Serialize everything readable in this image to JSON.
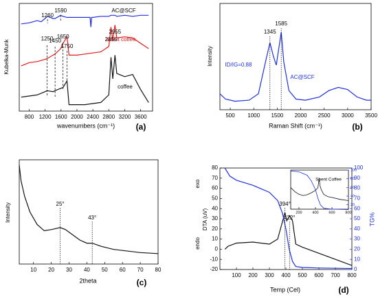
{
  "chart_data": [
    {
      "type": "line",
      "panel_label": "(a)",
      "xlabel": "wavenumbers (cm⁻¹)",
      "ylabel": "Kubelka-Munk",
      "xlim": [
        550,
        3900
      ],
      "xticks": [
        800,
        1200,
        1600,
        2000,
        2400,
        2800,
        3200,
        3600
      ],
      "ylim": [
        0,
        10
      ],
      "series": [
        {
          "name": "AC@SCF",
          "color": "#1f2fe0",
          "x": [
            600,
            800,
            1000,
            1100,
            1200,
            1260,
            1400,
            1450,
            1590,
            1650,
            1750,
            1800,
            2000,
            2200,
            2330,
            2350,
            2370,
            2400,
            2600,
            2800,
            2855,
            2955,
            3000,
            3200,
            3400,
            3600,
            3800
          ],
          "values": [
            8.1,
            8.2,
            8.4,
            8.3,
            8.6,
            8.8,
            8.6,
            8.6,
            8.9,
            8.8,
            8.7,
            8.7,
            8.7,
            8.7,
            8.7,
            7.8,
            8.7,
            8.7,
            8.8,
            8.8,
            8.9,
            8.9,
            8.8,
            8.9,
            8.8,
            8.9,
            8.9
          ]
        },
        {
          "name": "spent coffee",
          "color": "#e01818",
          "x": [
            600,
            800,
            1000,
            1200,
            1260,
            1400,
            1450,
            1590,
            1650,
            1750,
            1800,
            2000,
            2200,
            2400,
            2600,
            2800,
            2855,
            2900,
            2955,
            3000,
            3200,
            3400,
            3600,
            3800
          ],
          "values": [
            4.2,
            4.5,
            4.6,
            4.8,
            4.9,
            5.2,
            5.3,
            5.8,
            6.3,
            6.9,
            5.2,
            5.2,
            5.3,
            5.4,
            5.5,
            6.0,
            7.8,
            6.6,
            8.0,
            6.8,
            6.9,
            6.8,
            6.3,
            5.8
          ]
        },
        {
          "name": "coffee",
          "color": "#111111",
          "x": [
            600,
            800,
            1000,
            1200,
            1250,
            1400,
            1450,
            1650,
            1750,
            1800,
            2000,
            2200,
            2400,
            2600,
            2800,
            2855,
            2900,
            2955,
            3000,
            3200,
            3400,
            3600,
            3800
          ],
          "values": [
            1.3,
            1.4,
            1.5,
            1.8,
            1.9,
            1.8,
            1.9,
            2.2,
            2.8,
            0.6,
            0.6,
            0.6,
            0.7,
            0.8,
            1.5,
            5.0,
            3.0,
            5.2,
            3.5,
            3.2,
            3.4,
            2.0,
            0.8
          ]
        }
      ],
      "annotations": [
        {
          "label": "1260",
          "x": 1260
        },
        {
          "label": "1590",
          "x": 1590
        },
        {
          "label": "1250",
          "x": 1250
        },
        {
          "label": "1450",
          "x": 1450
        },
        {
          "label": "1650",
          "x": 1650
        },
        {
          "label": "1750",
          "x": 1750
        },
        {
          "label": "2855",
          "x": 2855
        },
        {
          "label": "2955",
          "x": 2955
        }
      ]
    },
    {
      "type": "line",
      "panel_label": "(b)",
      "xlabel": "Raman   Shift (cm⁻¹)",
      "ylabel": "Intensity",
      "note": "ID/IG=0.88",
      "xlim": [
        280,
        3500
      ],
      "xticks": [
        500,
        1000,
        1500,
        2000,
        2500,
        3000,
        3500
      ],
      "ylim": [
        0,
        10
      ],
      "series": [
        {
          "name": "AC@SCF",
          "color": "#1f2fe0",
          "x": [
            280,
            400,
            600,
            900,
            1100,
            1250,
            1345,
            1420,
            1480,
            1585,
            1640,
            1750,
            1900,
            2100,
            2400,
            2600,
            2800,
            3000,
            3200,
            3400,
            3500
          ],
          "values": [
            1.5,
            1.0,
            0.8,
            0.9,
            1.5,
            4.5,
            6.3,
            5.0,
            4.2,
            7.3,
            4.5,
            1.8,
            1.0,
            0.9,
            1.2,
            1.8,
            2.1,
            1.9,
            1.2,
            0.9,
            0.9
          ]
        }
      ],
      "annotations": [
        {
          "label": "1345",
          "x": 1345
        },
        {
          "label": "1585",
          "x": 1585
        }
      ]
    },
    {
      "type": "line",
      "panel_label": "(c)",
      "xlabel": "2theta",
      "ylabel": "Intensity",
      "xlim": [
        2,
        80
      ],
      "xticks": [
        10,
        20,
        30,
        40,
        50,
        60,
        70,
        80
      ],
      "ylim": [
        0,
        10
      ],
      "series": [
        {
          "name": null,
          "color": "#111111",
          "x": [
            2,
            3,
            5,
            8,
            12,
            16,
            20,
            25,
            28,
            32,
            36,
            40,
            43,
            48,
            55,
            60,
            70,
            80
          ],
          "values": [
            9.5,
            8,
            6.5,
            5,
            3.8,
            3.2,
            3.3,
            3.5,
            3.3,
            2.8,
            2.3,
            2.0,
            2.0,
            1.7,
            1.4,
            1.3,
            1.1,
            1.0
          ]
        }
      ],
      "annotations": [
        {
          "label": "25°",
          "x": 25
        },
        {
          "label": "43°",
          "x": 43
        }
      ]
    },
    {
      "type": "line",
      "panel_label": "(d)",
      "xlabel": "Temp (Cel)",
      "ylabel": "DTA (uV)",
      "y2label": "TG%",
      "exo": "exo",
      "endo": "endo",
      "xlim": [
        0,
        800
      ],
      "xticks": [
        100,
        200,
        300,
        400,
        500,
        600,
        700,
        800
      ],
      "ylim": [
        -20,
        80
      ],
      "yticks": [
        -20,
        -10,
        0,
        10,
        20,
        30,
        40,
        50,
        60,
        70,
        80
      ],
      "y2lim": [
        0,
        100
      ],
      "y2ticks": [
        0,
        10,
        20,
        30,
        40,
        50,
        60,
        70,
        80,
        90,
        100
      ],
      "series": [
        {
          "name": null,
          "color": "#111111",
          "x": [
            30,
            50,
            100,
            200,
            300,
            350,
            394,
            405,
            422,
            440,
            460,
            500,
            600,
            700,
            800
          ],
          "values": [
            0,
            3,
            6,
            7,
            5,
            10,
            36,
            28,
            33,
            28,
            5,
            2,
            -4,
            -10,
            -16
          ]
        },
        {
          "name": null,
          "color": "#1f2fe0",
          "axis": "y2",
          "x": [
            30,
            60,
            100,
            200,
            300,
            350,
            380,
            400,
            420,
            440,
            460,
            500,
            600,
            800
          ],
          "values": [
            100,
            92,
            88,
            83,
            76,
            68,
            55,
            40,
            20,
            8,
            3,
            2,
            1.5,
            1
          ]
        }
      ],
      "annotations": [
        {
          "label": "394°",
          "x": 394
        },
        {
          "label": "422°",
          "x": 422
        }
      ]
    },
    {
      "type": "line",
      "title": "Spent Coffee",
      "xlim": [
        100,
        800
      ],
      "xticks": [
        200,
        400,
        600,
        800
      ],
      "ylim": [
        0,
        100
      ],
      "y2lim": [
        10,
        100
      ],
      "y2ticks": [
        20,
        40,
        60,
        80,
        100
      ],
      "series": [
        {
          "name": null,
          "color": "#111111",
          "x": [
            100,
            150,
            200,
            250,
            300,
            350,
            400,
            430,
            445,
            455,
            470,
            500,
            550,
            600,
            700,
            800
          ],
          "values": [
            55,
            45,
            38,
            35,
            37,
            42,
            48,
            55,
            80,
            60,
            50,
            38,
            32,
            30,
            25,
            22
          ]
        },
        {
          "name": null,
          "color": "#1f2fe0",
          "axis": "y2",
          "x": [
            100,
            200,
            300,
            350,
            400,
            430,
            460,
            500,
            600,
            800
          ],
          "values": [
            98,
            96,
            88,
            75,
            55,
            35,
            20,
            12,
            10,
            9
          ]
        }
      ]
    }
  ]
}
